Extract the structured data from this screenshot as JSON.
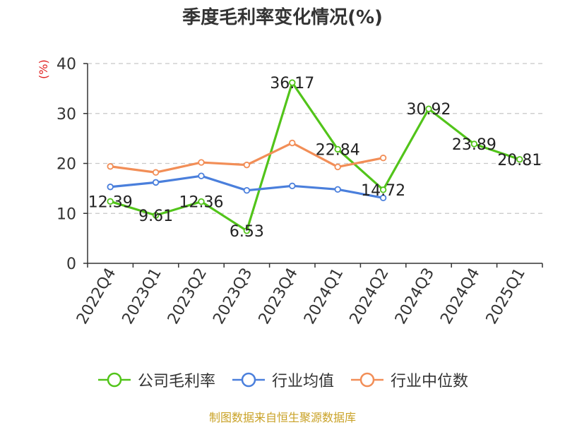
{
  "chart_data": {
    "type": "line",
    "title": "季度毛利率变化情况(%)",
    "ylabel": "(%)",
    "xlabel": "",
    "ylim": [
      0,
      40
    ],
    "yticks": [
      0,
      10,
      20,
      30,
      40
    ],
    "grid": true,
    "legend_position": "bottom",
    "categories": [
      "2022Q4",
      "2023Q1",
      "2023Q2",
      "2023Q3",
      "2023Q4",
      "2024Q1",
      "2024Q2",
      "2024Q3",
      "2024Q4",
      "2025Q1"
    ],
    "series": [
      {
        "name": "公司毛利率",
        "color": "#52c41a",
        "values": [
          12.39,
          9.61,
          12.36,
          6.53,
          36.17,
          22.84,
          14.72,
          30.92,
          23.89,
          20.81
        ],
        "labels": [
          "12.39",
          "9.61",
          "12.36",
          "6.53",
          "36.17",
          "22.84",
          "14.72",
          "30.92",
          "23.89",
          "20.81"
        ],
        "show_labels": true
      },
      {
        "name": "行业均值",
        "color": "#4a7fdc",
        "values": [
          15.3,
          16.2,
          17.5,
          14.6,
          15.5,
          14.8,
          13.1,
          null,
          null,
          null
        ],
        "show_labels": false
      },
      {
        "name": "行业中位数",
        "color": "#f28e57",
        "values": [
          19.4,
          18.2,
          20.2,
          19.7,
          24.1,
          19.3,
          21.1,
          null,
          null,
          null
        ],
        "show_labels": false
      }
    ]
  },
  "footer": {
    "source": "制图数据来自恒生聚源数据库"
  }
}
